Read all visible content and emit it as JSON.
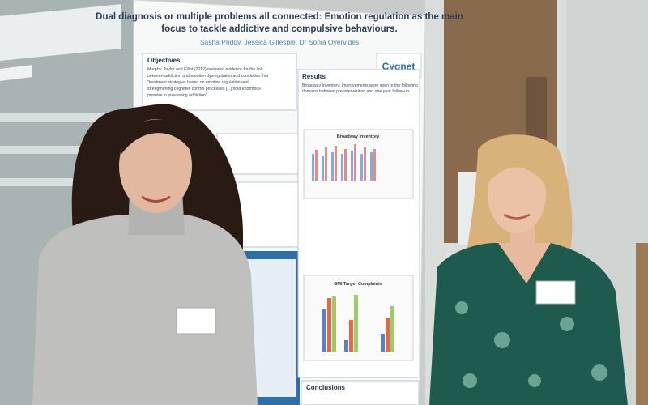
{
  "poster": {
    "title_lines": [
      "Dual diagnosis or multiple problems all connected: Emotion regulation as the main",
      "focus to tackle addictive and compulsive behaviours."
    ],
    "authors": "Sasha Priddy, Jessica Gillespie, Dr Sonia Oyervides",
    "logo": "Cygnet",
    "objectives": {
      "heading": "Objectives",
      "lines": [
        "Murphy, Taylor and Elliot (2012) reviewed evidence for the link",
        "between addiction and emotion dysregulation and concludes that",
        "\"treatment strategies based on emotion regulation and",
        "strengthening cognitive control processes [...] hold enormous",
        "promise in preventing addiction\"."
      ]
    },
    "results": {
      "heading": "Results",
      "lines": [
        "Broadway Inventory: Improvements were seen in the following",
        "domains between pre-intervention and one year follow-up."
      ]
    },
    "chart_titles": [
      "Broadway Inventory",
      "GMI Target Complaints"
    ],
    "conclusions": {
      "heading": "Conclusions"
    }
  }
}
